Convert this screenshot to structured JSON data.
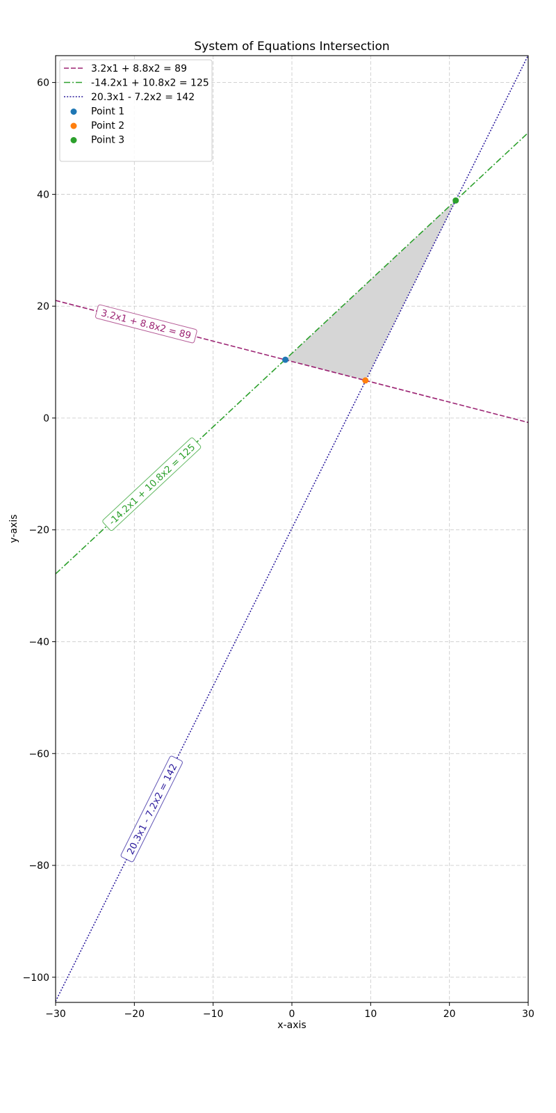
{
  "chart_data": {
    "type": "line",
    "title": "System of Equations Intersection",
    "xlabel": "x-axis",
    "ylabel": "y-axis",
    "xlim": [
      -30,
      30
    ],
    "ylim": [
      -104.5,
      64.8
    ],
    "xticks": [
      -30,
      -20,
      -10,
      0,
      10,
      20,
      30
    ],
    "yticks": [
      -100,
      -80,
      -60,
      -40,
      -20,
      0,
      20,
      40,
      60
    ],
    "xtick_labels": [
      "−30",
      "−20",
      "−10",
      "0",
      "10",
      "20",
      "30"
    ],
    "ytick_labels": [
      "−100",
      "−80",
      "−60",
      "−40",
      "−20",
      "0",
      "20",
      "40",
      "60"
    ],
    "grid": true,
    "legend_position": "top-left",
    "series": [
      {
        "name": "3.2x1 + 8.8x2 = 89",
        "a": 3.2,
        "b": 8.8,
        "c": 89,
        "color": "#9b2272",
        "dash": "dashed",
        "label_x": -18.5
      },
      {
        "name": "-14.2x1 + 10.8x2 = 125",
        "a": -14.2,
        "b": 10.8,
        "c": 125,
        "color": "#2ca02c",
        "dash": "dashdot",
        "label_x": -17.8
      },
      {
        "name": "20.3x1 - 7.2x2 = 142",
        "a": 20.3,
        "b": -7.2,
        "c": 142,
        "color": "#2a1a9c",
        "dash": "dotted",
        "label_x": -17.8
      }
    ],
    "points": [
      {
        "name": "Point 1",
        "x": -0.83,
        "y": 10.42,
        "color": "#1f77b4"
      },
      {
        "name": "Point 2",
        "x": 9.33,
        "y": 6.72,
        "color": "#ff7f0e"
      },
      {
        "name": "Point 3",
        "x": 20.8,
        "y": 38.9,
        "color": "#2ca02c"
      }
    ],
    "shaded_region": {
      "vertices": [
        "Point 1",
        "Point 2",
        "Point 3"
      ],
      "color": "#d6d6d6"
    }
  }
}
